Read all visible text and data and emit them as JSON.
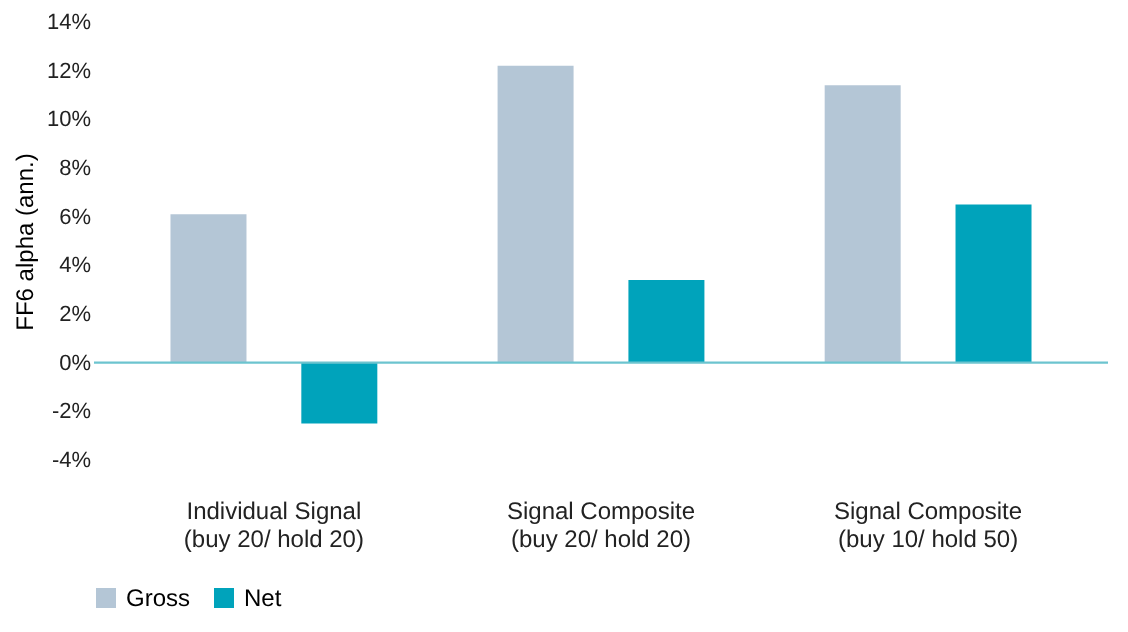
{
  "chart_data": {
    "type": "bar",
    "categories": [
      "Individual Signal\n(buy 20/ hold 20)",
      "Signal Composite\n(buy 20/ hold 20)",
      "Signal Composite\n(buy 10/ hold 50)"
    ],
    "series": [
      {
        "name": "Gross",
        "color": "#b4c6d6",
        "values": [
          6.1,
          12.2,
          11.4
        ]
      },
      {
        "name": "Net",
        "color": "#00a3bb",
        "values": [
          -2.5,
          3.4,
          6.5
        ]
      }
    ],
    "ylabel": "FF6 alpha (ann.)",
    "ylim": [
      -4,
      14
    ],
    "yticks": [
      {
        "value": -4,
        "label": "-4%"
      },
      {
        "value": -2,
        "label": "-2%"
      },
      {
        "value": 0,
        "label": "0%"
      },
      {
        "value": 2,
        "label": "2%"
      },
      {
        "value": 4,
        "label": "4%"
      },
      {
        "value": 6,
        "label": "6%"
      },
      {
        "value": 8,
        "label": "8%"
      },
      {
        "value": 10,
        "label": "10%"
      },
      {
        "value": 12,
        "label": "12%"
      },
      {
        "value": 14,
        "label": "14%"
      }
    ],
    "ref_lines": [
      {
        "axis": "y",
        "value": 0,
        "color": "#6cc4cf"
      }
    ],
    "grid": false,
    "legend": "bottom"
  }
}
